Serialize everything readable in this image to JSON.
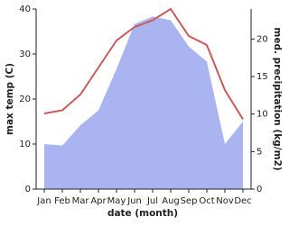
{
  "chart_data": {
    "type": "line",
    "x_label": "date (month)",
    "y_label": "max temp (C)",
    "y2_label": "med. precipitation (kg/m2)",
    "categories": [
      "Jan",
      "Feb",
      "Mar",
      "Apr",
      "May",
      "Jun",
      "Jul",
      "Aug",
      "Sep",
      "Oct",
      "Nov",
      "Dec"
    ],
    "series": [
      {
        "name": "med. precipitation",
        "kind": "area",
        "axis": "y2",
        "color": "#aab4f0",
        "values": [
          6,
          5.8,
          8.5,
          10.5,
          16,
          22,
          23,
          22.5,
          19,
          17,
          6,
          9
        ]
      },
      {
        "name": "max temp",
        "kind": "line",
        "color": "#c85a5a",
        "values": [
          16.8,
          17.5,
          21,
          27,
          33,
          36,
          37.5,
          40,
          34,
          32,
          22,
          15.5
        ]
      }
    ],
    "ylim": [
      0,
      40
    ],
    "yticks": [
      0,
      10,
      20,
      30,
      40
    ],
    "y2lim": [
      0,
      24
    ],
    "y2ticks": [
      0,
      5,
      10,
      15,
      20
    ]
  }
}
